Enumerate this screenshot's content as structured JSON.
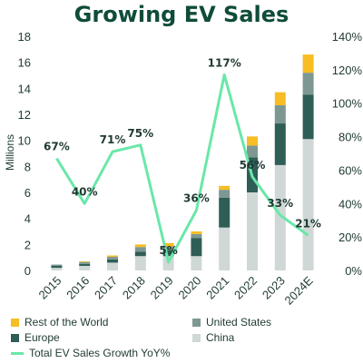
{
  "chart_data": {
    "type": "bar",
    "title": "Growing EV Sales",
    "ylabel": "Millions",
    "ylim": [
      0,
      18
    ],
    "y2lim": [
      0,
      1.4
    ],
    "yticks": [
      "0",
      "2",
      "4",
      "6",
      "8",
      "10",
      "12",
      "14",
      "16",
      "18"
    ],
    "y2ticks": [
      "0%",
      "20%",
      "40%",
      "60%",
      "80%",
      "100%",
      "120%",
      "140%"
    ],
    "categories": [
      "2015",
      "2016",
      "2017",
      "2018",
      "2019",
      "2020",
      "2021",
      "2022",
      "2023",
      "2024E"
    ],
    "series": [
      {
        "name": "China",
        "color": "#cfd8d6",
        "values": [
          0.2,
          0.35,
          0.6,
          1.1,
          1.1,
          1.1,
          3.3,
          6.0,
          8.1,
          10.1
        ]
      },
      {
        "name": "Europe",
        "color": "#2e5e56",
        "values": [
          0.15,
          0.15,
          0.25,
          0.35,
          0.45,
          1.4,
          2.3,
          2.7,
          3.2,
          3.4
        ]
      },
      {
        "name": "United States",
        "color": "#7d9893",
        "values": [
          0.1,
          0.15,
          0.2,
          0.35,
          0.3,
          0.3,
          0.6,
          0.9,
          1.4,
          1.7
        ]
      },
      {
        "name": "Rest of the World",
        "color": "#f7bd22",
        "values": [
          0.0,
          0.05,
          0.1,
          0.2,
          0.25,
          0.2,
          0.3,
          0.7,
          1.0,
          1.4
        ]
      }
    ],
    "line": {
      "name": "Total EV Sales Growth YoY%",
      "color": "#6ae7a9",
      "values": [
        0.67,
        0.4,
        0.71,
        0.75,
        0.05,
        0.36,
        1.17,
        0.56,
        0.33,
        0.21
      ],
      "labels": [
        "67%",
        "40%",
        "71%",
        "75%",
        "5%",
        "36%",
        "117%",
        "56%",
        "33%",
        "21%"
      ]
    },
    "legend_placement": "bottom",
    "grid": false
  },
  "legend": {
    "row": "Rest of the World",
    "us": "United States",
    "europe": "Europe",
    "china": "China",
    "growth": "Total EV Sales Growth YoY%"
  }
}
